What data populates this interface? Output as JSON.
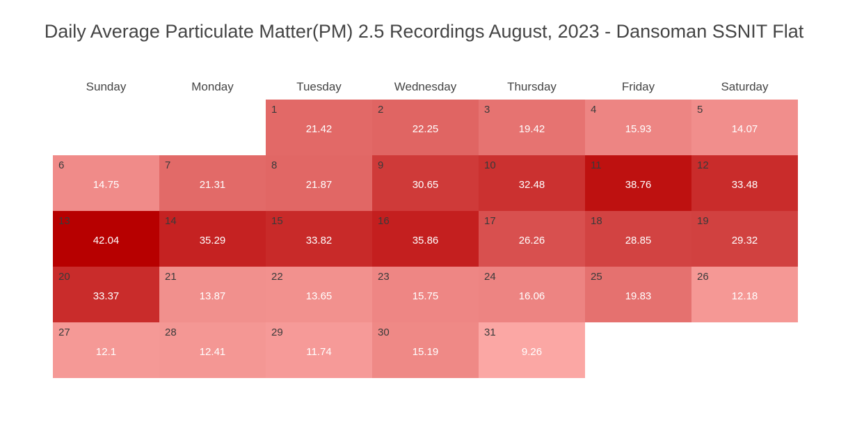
{
  "title": "Daily Average Particulate Matter(PM) 2.5 Recordings August, 2023 - Dansoman SSNIT Flat",
  "colors": {
    "low": "#fba7a4",
    "high": "#b70000"
  },
  "chart_data": {
    "type": "heatmap",
    "title": "Daily Average Particulate Matter(PM) 2.5 Recordings August, 2023 - Dansoman SSNIT Flat",
    "weekdays": [
      "Sunday",
      "Monday",
      "Tuesday",
      "Wednesday",
      "Thursday",
      "Friday",
      "Saturday"
    ],
    "days": [
      {
        "date": "1",
        "weekday": "Tuesday",
        "value": 21.42
      },
      {
        "date": "2",
        "weekday": "Wednesday",
        "value": 22.25
      },
      {
        "date": "3",
        "weekday": "Thursday",
        "value": 19.42
      },
      {
        "date": "4",
        "weekday": "Friday",
        "value": 15.93
      },
      {
        "date": "5",
        "weekday": "Saturday",
        "value": 14.07
      },
      {
        "date": "6",
        "weekday": "Sunday",
        "value": 14.75
      },
      {
        "date": "7",
        "weekday": "Monday",
        "value": 21.31
      },
      {
        "date": "8",
        "weekday": "Tuesday",
        "value": 21.87
      },
      {
        "date": "9",
        "weekday": "Wednesday",
        "value": 30.65
      },
      {
        "date": "10",
        "weekday": "Thursday",
        "value": 32.48
      },
      {
        "date": "11",
        "weekday": "Friday",
        "value": 38.76
      },
      {
        "date": "12",
        "weekday": "Saturday",
        "value": 33.48
      },
      {
        "date": "13",
        "weekday": "Sunday",
        "value": 42.04
      },
      {
        "date": "14",
        "weekday": "Monday",
        "value": 35.29
      },
      {
        "date": "15",
        "weekday": "Tuesday",
        "value": 33.82
      },
      {
        "date": "16",
        "weekday": "Wednesday",
        "value": 35.86
      },
      {
        "date": "17",
        "weekday": "Thursday",
        "value": 26.26
      },
      {
        "date": "18",
        "weekday": "Friday",
        "value": 28.85
      },
      {
        "date": "19",
        "weekday": "Saturday",
        "value": 29.32
      },
      {
        "date": "20",
        "weekday": "Sunday",
        "value": 33.37
      },
      {
        "date": "21",
        "weekday": "Monday",
        "value": 13.87
      },
      {
        "date": "22",
        "weekday": "Tuesday",
        "value": 13.65
      },
      {
        "date": "23",
        "weekday": "Wednesday",
        "value": 15.75
      },
      {
        "date": "24",
        "weekday": "Thursday",
        "value": 16.06
      },
      {
        "date": "25",
        "weekday": "Friday",
        "value": 19.83
      },
      {
        "date": "26",
        "weekday": "Saturday",
        "value": 12.18
      },
      {
        "date": "27",
        "weekday": "Sunday",
        "value": 12.1
      },
      {
        "date": "28",
        "weekday": "Monday",
        "value": 12.41
      },
      {
        "date": "29",
        "weekday": "Tuesday",
        "value": 11.74
      },
      {
        "date": "30",
        "weekday": "Wednesday",
        "value": 15.19
      },
      {
        "date": "31",
        "weekday": "Thursday",
        "value": 9.26
      }
    ]
  }
}
